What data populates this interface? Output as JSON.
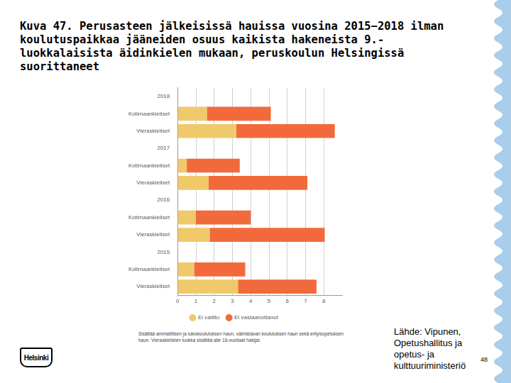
{
  "title": "Kuva 47. Perusasteen jälkeisissä hauissa vuosina 2015−2018 ilman koulutuspaikkaa jääneiden osuus kaikista hakeneista 9.-luokkalaisista äidinkielen mukaan, peruskoulun Helsingissä suorittaneet",
  "footnote": "Sisältää ammatillisen ja lukiokoulutuksen haun, valmistavan koulutuksen haun sekä erityisopetuksen haun. Vieraskielisten luokka sisältää alle 16-vuotiaat hakijat.",
  "source": "Lähde: Vipunen, Opetushallitus ja opetus- ja kulttuuriministeriö",
  "page": "48",
  "logo": "Helsinki",
  "chart_data": {
    "type": "bar",
    "orientation": "horizontal",
    "stacked": true,
    "categories": [
      "2018",
      "Kotimaankieliset",
      "Vieraskieliset",
      "2017",
      "Kotimaankieliset",
      "Vieraskieliset",
      "2016",
      "Kotimaankieliset",
      "Vieraskieliset",
      "2015",
      "Kotimaankieliset",
      "Vieraskieliset"
    ],
    "series": [
      {
        "name": "Ei valittu",
        "color": "#f0c96a",
        "values": [
          null,
          1.6,
          3.2,
          null,
          0.5,
          1.7,
          null,
          1.0,
          1.75,
          null,
          0.9,
          3.3
        ]
      },
      {
        "name": "Ei vastaanottanut",
        "color": "#f26a3b",
        "values": [
          null,
          3.5,
          5.4,
          null,
          2.9,
          5.4,
          null,
          3.0,
          6.3,
          null,
          2.8,
          4.3
        ]
      }
    ],
    "xlim": [
      0,
      9
    ],
    "xticks": [
      0,
      1,
      2,
      3,
      4,
      5,
      6,
      7,
      8
    ],
    "grid": true,
    "legend": "bottom"
  }
}
